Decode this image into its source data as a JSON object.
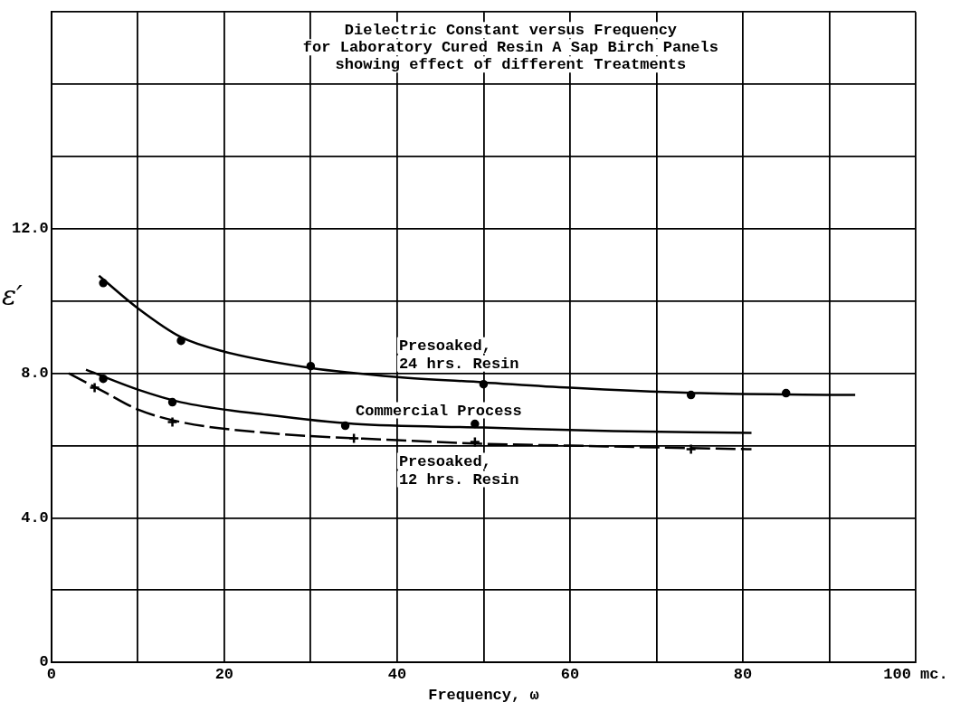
{
  "chart_data": {
    "type": "scatter",
    "title": "Dielectric Constant versus Frequency",
    "subtitle": "for Laboratory Cured Resin A Sap Birch Panels\nshowing effect of different Treatments",
    "xlabel": "Frequency, ω",
    "ylabel": "ε′",
    "xlim": [
      0,
      100
    ],
    "xticks": [
      0,
      {
        "value": 10,
        "label": null
      },
      20,
      {
        "value": 30,
        "label": null
      },
      40,
      {
        "value": 50,
        "label": null
      },
      60,
      {
        "value": 70,
        "label": null
      },
      80,
      {
        "value": 90,
        "label": null
      },
      {
        "value": 100,
        "label": "100 mc."
      }
    ],
    "ylim": [
      0,
      18
    ],
    "yticks": [
      0,
      {
        "value": 2,
        "label": null
      },
      {
        "value": 4,
        "label": "4.0"
      },
      {
        "value": 6,
        "label": null
      },
      {
        "value": 8,
        "label": "8.0"
      },
      {
        "value": 10,
        "label": null
      },
      {
        "value": 12,
        "label": "12.0"
      },
      {
        "value": 14,
        "label": null
      },
      {
        "value": 16,
        "label": null
      },
      {
        "value": 18,
        "label": null
      }
    ],
    "grid": true,
    "series": [
      {
        "type": "scatter",
        "color": "#000000",
        "marker": "circle",
        "x": [
          6,
          15,
          30,
          50,
          74,
          85
        ],
        "values": [
          10.5,
          8.9,
          8.2,
          7.7,
          7.4,
          7.45
        ]
      },
      {
        "type": "line",
        "name": "Presoaked,\n24 hrs. Resin",
        "color": "#000000",
        "marker": "none",
        "line_style": "solid",
        "x": [
          5.5,
          10,
          15,
          20,
          30,
          40,
          50,
          60,
          75,
          93
        ],
        "values": [
          10.7,
          9.8,
          9.0,
          8.6,
          8.15,
          7.9,
          7.75,
          7.6,
          7.45,
          7.4
        ]
      },
      {
        "type": "scatter",
        "color": "#000000",
        "marker": "circle",
        "x": [
          6,
          14,
          34,
          49
        ],
        "values": [
          7.85,
          7.2,
          6.55,
          6.6
        ]
      },
      {
        "type": "line",
        "name": "Commercial Process",
        "color": "#000000",
        "marker": "none",
        "line_style": "solid",
        "x": [
          4,
          10,
          15,
          25,
          35,
          50,
          65,
          81
        ],
        "values": [
          8.1,
          7.55,
          7.2,
          6.85,
          6.6,
          6.5,
          6.4,
          6.35
        ]
      },
      {
        "type": "scatter",
        "color": "#000000",
        "marker": "cross",
        "x": [
          5,
          14,
          35,
          49,
          74
        ],
        "values": [
          7.6,
          6.65,
          6.2,
          6.1,
          5.9
        ]
      },
      {
        "type": "line",
        "name": "Presoaked,\n12 hrs. Resin",
        "color": "#000000",
        "marker": "none",
        "line_style": "dashed",
        "x": [
          2,
          6,
          10,
          15,
          25,
          40,
          50,
          60,
          70,
          81
        ],
        "values": [
          8.0,
          7.5,
          7.0,
          6.65,
          6.35,
          6.15,
          6.05,
          6.0,
          5.95,
          5.9
        ]
      }
    ]
  }
}
